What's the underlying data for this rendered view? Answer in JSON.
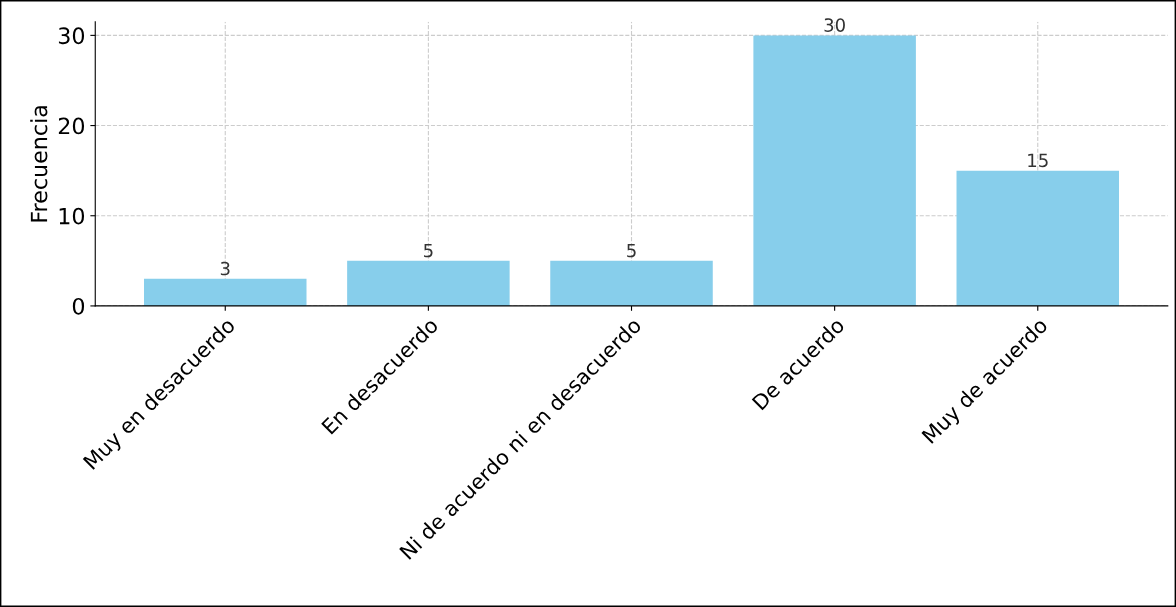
{
  "chart_data": {
    "type": "bar",
    "ylabel": "Frecuencia",
    "categories": [
      "Muy en desacuerdo",
      "En desacuerdo",
      "Ni de acuerdo ni en desacuerdo",
      "De acuerdo",
      "Muy de acuerdo"
    ],
    "values": [
      3,
      5,
      5,
      30,
      15
    ],
    "color": "#87ceeb",
    "ylim": [
      0,
      31.5
    ],
    "yticks": [
      0,
      10,
      20,
      30
    ],
    "grid": true,
    "data_labels": true
  }
}
